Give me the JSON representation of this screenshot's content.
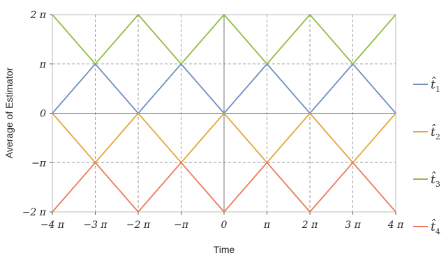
{
  "chart_data": {
    "type": "line",
    "xlabel": "Time",
    "ylabel": "Average of Estimator",
    "xlim": [
      -12.566,
      12.566
    ],
    "ylim": [
      -6.283,
      6.283
    ],
    "x_unit": "π",
    "y_unit": "π",
    "grid": true,
    "grid_style": "dashed",
    "legend_position": "right",
    "x_ticks": [
      {
        "value": -4,
        "label": "−4 π"
      },
      {
        "value": -3,
        "label": "−3 π"
      },
      {
        "value": -2,
        "label": "−2 π"
      },
      {
        "value": -1,
        "label": "−π"
      },
      {
        "value": 0,
        "label": "0"
      },
      {
        "value": 1,
        "label": "π"
      },
      {
        "value": 2,
        "label": "2 π"
      },
      {
        "value": 3,
        "label": "3 π"
      },
      {
        "value": 4,
        "label": "4 π"
      }
    ],
    "y_ticks": [
      {
        "value": 2,
        "label": "2 π"
      },
      {
        "value": 1,
        "label": "π"
      },
      {
        "value": 0,
        "label": "0"
      },
      {
        "value": -1,
        "label": "−π"
      },
      {
        "value": -2,
        "label": "−2 π"
      }
    ],
    "x_in_pi": [
      -4,
      -3,
      -2,
      -1,
      0,
      1,
      2,
      3,
      4
    ],
    "series": [
      {
        "name": "t̂1",
        "base": "t̂",
        "sub": "1",
        "color": "#6f8fc1",
        "y_in_pi": [
          0,
          1,
          0,
          1,
          0,
          1,
          0,
          1,
          0
        ]
      },
      {
        "name": "t̂2",
        "base": "t̂",
        "sub": "2",
        "color": "#e3a73d",
        "y_in_pi": [
          0,
          -1,
          0,
          -1,
          0,
          -1,
          0,
          -1,
          0
        ]
      },
      {
        "name": "t̂3",
        "base": "t̂",
        "sub": "3",
        "color": "#93bc45",
        "y_in_pi": [
          2,
          1,
          2,
          1,
          2,
          1,
          2,
          1,
          2
        ]
      },
      {
        "name": "t̂4",
        "base": "t̂",
        "sub": "4",
        "color": "#ec7a59",
        "y_in_pi": [
          -2,
          -1,
          -2,
          -1,
          -2,
          -1,
          -2,
          -1,
          -2
        ]
      }
    ]
  }
}
